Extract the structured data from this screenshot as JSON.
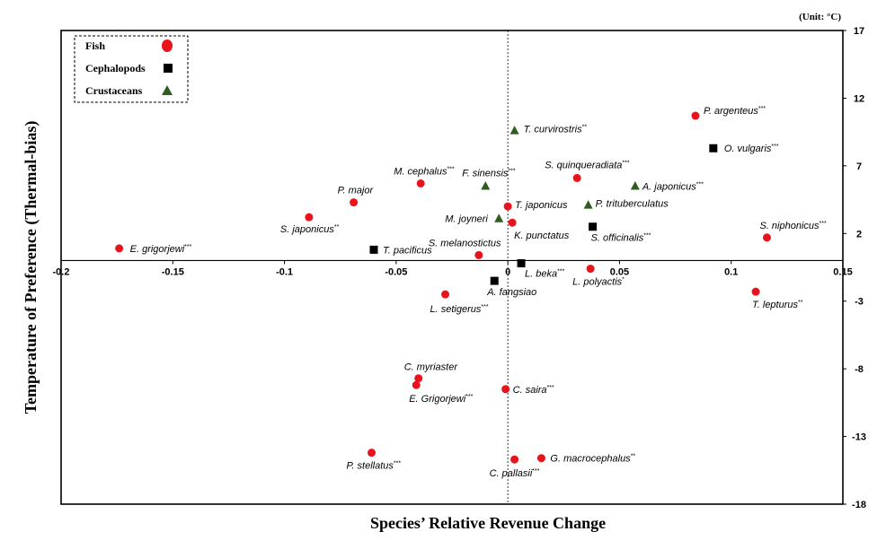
{
  "chart_data": {
    "type": "scatter",
    "title": "",
    "xlabel": "Species’ Relative Revenue Change",
    "ylabel": "Temperature of Preference (Thermal-bias)",
    "unit_note": "(Unit: °C)",
    "xlim": [
      -0.2,
      0.15
    ],
    "ylim": [
      -18,
      17
    ],
    "x_ticks": [
      -0.2,
      -0.15,
      -0.1,
      -0.05,
      0,
      0.05,
      0.1,
      0.15
    ],
    "x_tick_labels": [
      "-0.2",
      "-0.15",
      "-0.1",
      "-0.05",
      "0",
      "0.05",
      "0.1",
      "0.15"
    ],
    "y_ticks": [
      17,
      12,
      7,
      2,
      -3,
      -8,
      -13,
      -18
    ],
    "y_tick_labels": [
      "17",
      "12",
      "7",
      "2",
      "-3",
      "-8",
      "-13",
      "-18"
    ],
    "grid": false,
    "legend_position": "top-left",
    "series": [
      {
        "name": "Fish",
        "marker": "circle",
        "color": "#e8141c",
        "points": [
          {
            "label": "P. argenteus",
            "sig": "***",
            "x": 0.084,
            "y": 10.7
          },
          {
            "label": "S. niphonicus",
            "sig": "***",
            "x": 0.116,
            "y": 1.7
          },
          {
            "label": "T. lepturus",
            "sig": "**",
            "x": 0.111,
            "y": -2.3
          },
          {
            "label": "S. quinqueradiata",
            "sig": "***",
            "x": 0.031,
            "y": 6.1
          },
          {
            "label": "M. cephalus",
            "sig": "***",
            "x": -0.039,
            "y": 5.7
          },
          {
            "label": "P. major",
            "sig": "",
            "x": -0.069,
            "y": 4.3
          },
          {
            "label": "S. japonicus",
            "sig": "**",
            "x": -0.089,
            "y": 3.2
          },
          {
            "label": "E. grigorjewi",
            "sig": "***",
            "x": -0.174,
            "y": 0.9
          },
          {
            "label": "T. japonicus",
            "sig": "",
            "x": 0.0,
            "y": 4.0
          },
          {
            "label": "K. punctatus",
            "sig": "",
            "x": 0.002,
            "y": 2.8
          },
          {
            "label": "S. melanostictus",
            "sig": "",
            "x": -0.013,
            "y": 0.4
          },
          {
            "label": "L. polyactis",
            "sig": "*",
            "x": 0.037,
            "y": -0.6
          },
          {
            "label": "L. setigerus",
            "sig": "***",
            "x": -0.028,
            "y": -2.5
          },
          {
            "label": "C. myriaster",
            "sig": "",
            "x": -0.04,
            "y": -8.7
          },
          {
            "label": "E. Grigorjewi",
            "sig": "***",
            "x": -0.041,
            "y": -9.2
          },
          {
            "label": "C. saira",
            "sig": "***",
            "x": -0.001,
            "y": -9.5
          },
          {
            "label": "P. stellatus",
            "sig": "***",
            "x": -0.061,
            "y": -14.2
          },
          {
            "label": "C. pallasii",
            "sig": "***",
            "x": 0.003,
            "y": -14.7
          },
          {
            "label": "G. macrocephalus",
            "sig": "**",
            "x": 0.015,
            "y": -14.6
          }
        ]
      },
      {
        "name": "Cephalopods",
        "marker": "square",
        "color": "#000000",
        "points": [
          {
            "label": "O. vulgaris",
            "sig": "***",
            "x": 0.092,
            "y": 8.3
          },
          {
            "label": "S. officinalis",
            "sig": "***",
            "x": 0.038,
            "y": 2.5
          },
          {
            "label": "T. pacificus",
            "sig": "",
            "x": -0.06,
            "y": 0.8
          },
          {
            "label": "L. beka",
            "sig": "***",
            "x": 0.006,
            "y": -0.2
          },
          {
            "label": "A. fangsiao",
            "sig": "",
            "x": -0.006,
            "y": -1.5
          }
        ]
      },
      {
        "name": "Crustaceans",
        "marker": "triangle",
        "color": "#2e5d1e",
        "points": [
          {
            "label": "T. curvirostris",
            "sig": "**",
            "x": 0.003,
            "y": 9.6
          },
          {
            "label": "F. sinensis",
            "sig": "***",
            "x": -0.01,
            "y": 5.5
          },
          {
            "label": "A. japonicus",
            "sig": "***",
            "x": 0.057,
            "y": 5.5
          },
          {
            "label": "P. trituberculatus",
            "sig": "",
            "x": 0.036,
            "y": 4.1
          },
          {
            "label": "M. joyneri",
            "sig": "",
            "x": -0.004,
            "y": 3.1
          }
        ]
      }
    ]
  }
}
